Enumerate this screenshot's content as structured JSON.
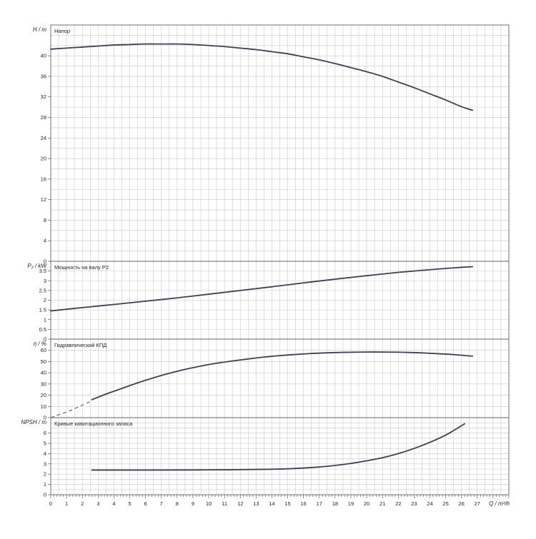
{
  "chart_data": {
    "type": "line",
    "x_axis": {
      "label": "Q / m³/h",
      "range": [
        0,
        29
      ],
      "ticks": [
        0,
        1,
        2,
        3,
        4,
        5,
        6,
        7,
        8,
        9,
        10,
        11,
        12,
        13,
        14,
        15,
        16,
        17,
        18,
        19,
        20,
        21,
        22,
        23,
        24,
        25,
        26,
        27
      ],
      "tick_labels": [
        "0",
        "1",
        "2",
        "3",
        "4",
        "5",
        "6",
        "7",
        "8",
        "9",
        "10",
        "11",
        "12",
        "13",
        "14",
        "15",
        "16",
        "17",
        "18",
        "19",
        "20",
        "21",
        "22",
        "23",
        "24",
        "25",
        "26",
        "27"
      ]
    },
    "grid": true,
    "panels": [
      {
        "id": "head",
        "title": "Напор",
        "ylabel": "H / m",
        "ylim": [
          0,
          46
        ],
        "yticks": [
          0,
          4,
          8,
          12,
          16,
          20,
          24,
          28,
          32,
          36,
          40
        ],
        "ytick_labels": [
          "0",
          "4",
          "8",
          "12",
          "16",
          "20",
          "24",
          "28",
          "32",
          "36",
          "40"
        ],
        "ygrid_step": 2,
        "series": [
          {
            "points": [
              [
                0,
                41.3
              ],
              [
                1,
                41.5
              ],
              [
                2,
                41.7
              ],
              [
                3,
                41.9
              ],
              [
                4,
                42.1
              ],
              [
                5,
                42.2
              ],
              [
                6,
                42.3
              ],
              [
                7,
                42.3
              ],
              [
                8,
                42.3
              ],
              [
                9,
                42.2
              ],
              [
                10,
                42.0
              ],
              [
                11,
                41.8
              ],
              [
                12,
                41.5
              ],
              [
                13,
                41.2
              ],
              [
                14,
                40.8
              ],
              [
                15,
                40.4
              ],
              [
                16,
                39.8
              ],
              [
                17,
                39.2
              ],
              [
                18,
                38.5
              ],
              [
                19,
                37.7
              ],
              [
                20,
                36.9
              ],
              [
                21,
                36.0
              ],
              [
                22,
                34.9
              ],
              [
                23,
                33.8
              ],
              [
                24,
                32.6
              ],
              [
                25,
                31.4
              ],
              [
                26,
                30.1
              ],
              [
                26.7,
                29.4
              ]
            ]
          }
        ]
      },
      {
        "id": "power",
        "title": "Мощность на валу P2",
        "ylabel": "P₂ / kW",
        "ylim": [
          0,
          4
        ],
        "yticks": [
          0,
          0.5,
          1,
          1.5,
          2,
          2.5,
          3,
          3.5
        ],
        "ytick_labels": [
          "0",
          "0.5",
          "1",
          "1.5",
          "2",
          "2.5",
          "3",
          "3.5"
        ],
        "ygrid_step": 0.5,
        "series": [
          {
            "points": [
              [
                0,
                1.45
              ],
              [
                2,
                1.62
              ],
              [
                4,
                1.78
              ],
              [
                6,
                1.95
              ],
              [
                8,
                2.12
              ],
              [
                10,
                2.31
              ],
              [
                12,
                2.5
              ],
              [
                14,
                2.69
              ],
              [
                16,
                2.89
              ],
              [
                18,
                3.08
              ],
              [
                20,
                3.26
              ],
              [
                22,
                3.43
              ],
              [
                24,
                3.57
              ],
              [
                26,
                3.69
              ],
              [
                26.7,
                3.72
              ]
            ]
          }
        ]
      },
      {
        "id": "efficiency",
        "title": "Гидравлический КПД",
        "ylabel": "η / %",
        "ylim": [
          0,
          70
        ],
        "yticks": [
          0,
          10,
          20,
          30,
          40,
          50,
          60
        ],
        "ytick_labels": [
          "0",
          "10",
          "20",
          "30",
          "40",
          "50",
          "60"
        ],
        "ygrid_step": 10,
        "dashed_series": [
          {
            "points": [
              [
                0,
                0
              ],
              [
                1.2,
                6
              ],
              [
                2.6,
                15
              ]
            ]
          }
        ],
        "series": [
          {
            "points": [
              [
                2.6,
                16
              ],
              [
                3.5,
                21
              ],
              [
                4.5,
                26
              ],
              [
                5.5,
                31
              ],
              [
                6.5,
                35.5
              ],
              [
                7.5,
                39.5
              ],
              [
                8.5,
                43
              ],
              [
                9.5,
                46
              ],
              [
                10.5,
                48.5
              ],
              [
                11.5,
                50.5
              ],
              [
                12.5,
                52.3
              ],
              [
                13.5,
                54
              ],
              [
                14.5,
                55.3
              ],
              [
                15.5,
                56.3
              ],
              [
                16.5,
                57.2
              ],
              [
                17.5,
                57.8
              ],
              [
                18.5,
                58.2
              ],
              [
                19.5,
                58.4
              ],
              [
                20.5,
                58.5
              ],
              [
                21.5,
                58.4
              ],
              [
                22.5,
                58.2
              ],
              [
                23.5,
                57.7
              ],
              [
                24.5,
                57
              ],
              [
                25.5,
                56.2
              ],
              [
                26.7,
                54.8
              ]
            ]
          }
        ]
      },
      {
        "id": "npsh",
        "title": "Кривые кавитационного запаса",
        "ylabel": "NPSH / m",
        "ylim": [
          0,
          7.5
        ],
        "yticks": [
          0,
          1,
          2,
          3,
          4,
          5,
          6
        ],
        "ytick_labels": [
          "0",
          "1",
          "2",
          "3",
          "4",
          "5",
          "6"
        ],
        "ygrid_step": 0.5,
        "series": [
          {
            "points": [
              [
                2.6,
                2.4
              ],
              [
                6,
                2.4
              ],
              [
                10,
                2.42
              ],
              [
                14,
                2.48
              ],
              [
                16,
                2.6
              ],
              [
                17,
                2.7
              ],
              [
                18,
                2.85
              ],
              [
                19,
                3.05
              ],
              [
                20,
                3.3
              ],
              [
                21,
                3.6
              ],
              [
                22,
                4.0
              ],
              [
                23,
                4.5
              ],
              [
                24,
                5.1
              ],
              [
                25,
                5.8
              ],
              [
                26.2,
                6.9
              ]
            ]
          }
        ]
      }
    ]
  }
}
